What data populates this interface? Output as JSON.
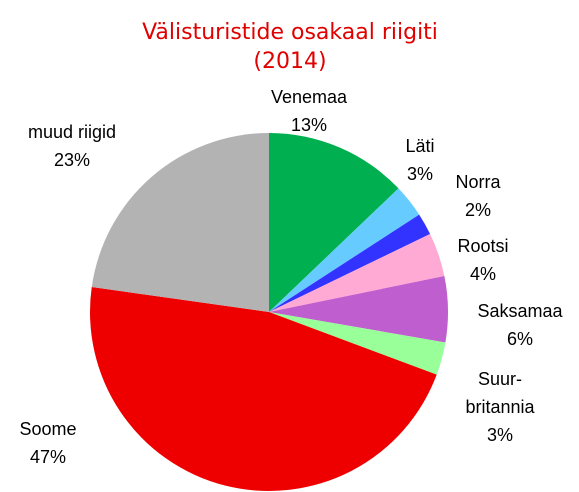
{
  "chart_data": {
    "type": "pie",
    "title": "Välisturistide osakaal riigiti\n(2014)",
    "categories": [
      "Venemaa",
      "Läti",
      "Norra",
      "Rootsi",
      "Saksamaa",
      "Suur-\nbritannia",
      "Soome",
      "muud riigid"
    ],
    "values": [
      13,
      3,
      2,
      4,
      6,
      3,
      47,
      23
    ],
    "value_labels": [
      "13%",
      "3%",
      "2%",
      "4%",
      "6%",
      "3%",
      "47%",
      "23%"
    ],
    "colors": [
      "#00b050",
      "#66ccff",
      "#3333ff",
      "#ffaad4",
      "#bf5fcf",
      "#99ff99",
      "#ee0000",
      "#b3b3b3"
    ]
  }
}
